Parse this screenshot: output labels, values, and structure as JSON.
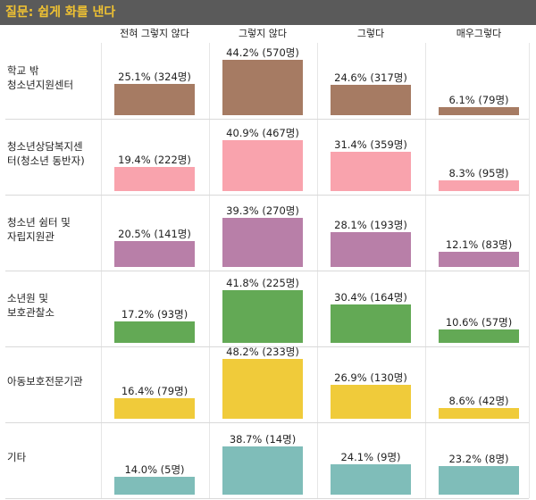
{
  "header": {
    "title": "질문: 쉽게 화를 낸다"
  },
  "chart_data": {
    "type": "bar",
    "title": "질문: 쉽게 화를 낸다",
    "categories": [
      "전혀 그렇지 않다",
      "그렇지 않다",
      "그렇다",
      "매우그렇다"
    ],
    "ylim": [
      0,
      50
    ],
    "rows": [
      {
        "label": "학교 밖\n청소년지원센터",
        "color": "#a67b63",
        "values": [
          25.1,
          44.2,
          24.6,
          6.1
        ],
        "labels": [
          "25.1% (324명)",
          "44.2% (570명)",
          "24.6% (317명)",
          "6.1% (79명)"
        ]
      },
      {
        "label": "청소년상담복지센\n터(청소년 동반자)",
        "color": "#f9a3ad",
        "values": [
          19.4,
          40.9,
          31.4,
          8.3
        ],
        "labels": [
          "19.4% (222명)",
          "40.9% (467명)",
          "31.4% (359명)",
          "8.3% (95명)"
        ]
      },
      {
        "label": "청소년 쉼터 및\n자립지원관",
        "color": "#b87fa8",
        "values": [
          20.5,
          39.3,
          28.1,
          12.1
        ],
        "labels": [
          "20.5% (141명)",
          "39.3% (270명)",
          "28.1% (193명)",
          "12.1% (83명)"
        ]
      },
      {
        "label": "소년원 및\n보호관찰소",
        "color": "#63a955",
        "values": [
          17.2,
          41.8,
          30.4,
          10.6
        ],
        "labels": [
          "17.2% (93명)",
          "41.8% (225명)",
          "30.4% (164명)",
          "10.6% (57명)"
        ]
      },
      {
        "label": "아동보호전문기관",
        "color": "#f0cb3a",
        "values": [
          16.4,
          48.2,
          26.9,
          8.6
        ],
        "labels": [
          "16.4% (79명)",
          "48.2% (233명)",
          "26.9% (130명)",
          "8.6% (42명)"
        ]
      },
      {
        "label": "기타",
        "color": "#7fbdb9",
        "values": [
          14.0,
          38.7,
          24.1,
          23.2
        ],
        "labels": [
          "14.0% (5명)",
          "38.7% (14명)",
          "24.1% (9명)",
          "23.2% (8명)"
        ]
      }
    ]
  }
}
